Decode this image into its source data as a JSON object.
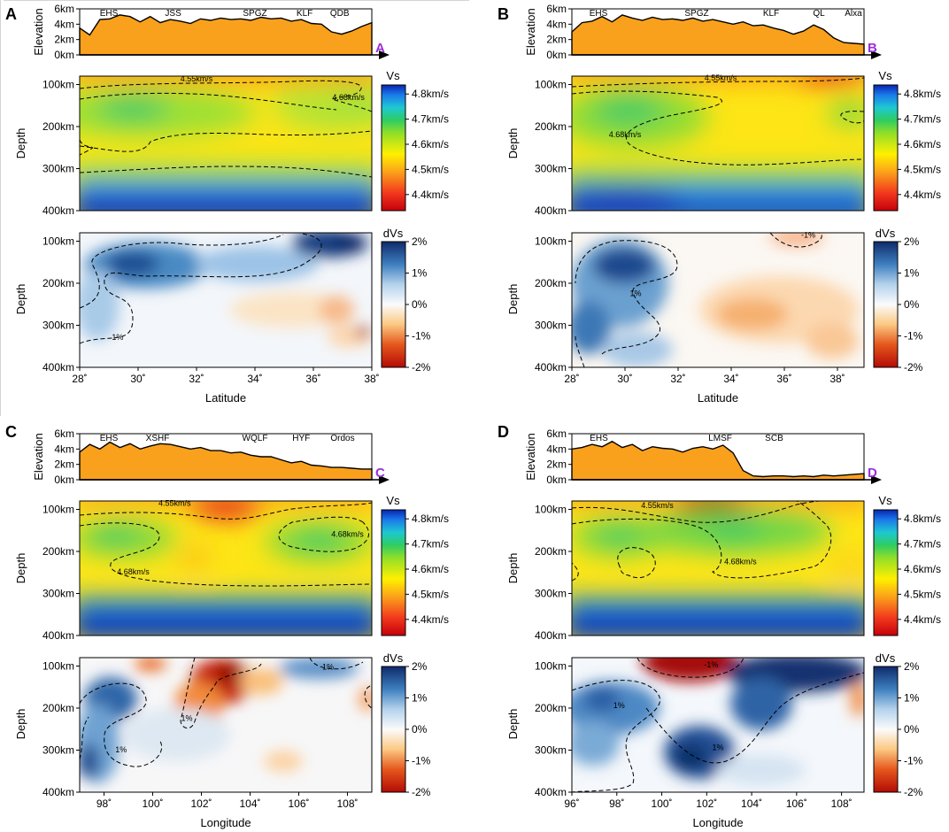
{
  "chart_data": [
    {
      "panel": "A",
      "type": "heatmap",
      "end_label": "A",
      "x_axis_label": "Latitude",
      "x_ticks": [
        "28˚",
        "30˚",
        "32˚",
        "34˚",
        "36˚",
        "38˚"
      ],
      "x_tick_values": [
        28,
        30,
        32,
        34,
        36,
        38
      ],
      "xlim": [
        28,
        38
      ],
      "elevation": {
        "ylabel": "Elevation",
        "yticks": [
          "6km",
          "4km",
          "2km",
          "0km"
        ],
        "ylim_km": [
          0,
          6
        ],
        "profile_km": [
          3.5,
          2.6,
          4.6,
          4.7,
          5.2,
          5.0,
          4.3,
          5.0,
          4.2,
          4.6,
          4.4,
          4.1,
          4.7,
          4.5,
          4.8,
          4.6,
          4.7,
          4.5,
          4.9,
          4.7,
          4.8,
          4.4,
          4.6,
          4.1,
          4.0,
          3.0,
          2.7,
          3.1,
          3.7,
          4.2
        ],
        "features": [
          {
            "name": "EHS",
            "x": 29.0
          },
          {
            "name": "JSS",
            "x": 31.2
          },
          {
            "name": "SPGZ",
            "x": 34.0
          },
          {
            "name": "KLF",
            "x": 35.7
          },
          {
            "name": "QDB",
            "x": 36.9
          }
        ]
      },
      "vs": {
        "ylabel": "Depth",
        "yticks": [
          "100km",
          "200km",
          "300km",
          "400km"
        ],
        "ylim_km": [
          80,
          400
        ],
        "colorbar_title": "Vs",
        "colorbar_ticks": [
          "4.8km/s",
          "4.7km/s",
          "4.6km/s",
          "4.5km/s",
          "4.4km/s"
        ],
        "contour_labels": [
          {
            "text": "4.55km/s",
            "x": 32.0,
            "y": 93
          },
          {
            "text": "4.68km/s",
            "x": 37.2,
            "y": 137
          }
        ]
      },
      "dvs": {
        "ylabel": "Depth",
        "yticks": [
          "100km",
          "200km",
          "300km",
          "400km"
        ],
        "colorbar_title": "dVs",
        "colorbar_ticks": [
          "2%",
          "1%",
          "0%",
          "-1%",
          "-2%"
        ],
        "contour_labels": [
          {
            "text": "1%",
            "x": 29.3,
            "y": 335
          }
        ]
      }
    },
    {
      "panel": "B",
      "type": "heatmap",
      "end_label": "B",
      "x_axis_label": "Latitude",
      "x_ticks": [
        "28˚",
        "30˚",
        "32˚",
        "34˚",
        "36˚",
        "38˚"
      ],
      "x_tick_values": [
        28,
        30,
        32,
        34,
        36,
        38
      ],
      "xlim": [
        28,
        39
      ],
      "elevation": {
        "ylabel": "Elevation",
        "yticks": [
          "6km",
          "4km",
          "2km",
          "0km"
        ],
        "ylim_km": [
          0,
          6
        ],
        "profile_km": [
          3.0,
          4.2,
          4.4,
          5.0,
          4.3,
          5.2,
          4.8,
          4.5,
          4.9,
          4.6,
          4.7,
          4.5,
          4.8,
          4.4,
          4.6,
          4.3,
          4.0,
          4.3,
          3.8,
          3.9,
          3.5,
          3.2,
          2.7,
          3.1,
          3.9,
          3.3,
          2.2,
          1.6,
          1.5,
          1.4
        ],
        "features": [
          {
            "name": "EHS",
            "x": 29.0
          },
          {
            "name": "SPGZ",
            "x": 32.7
          },
          {
            "name": "KLF",
            "x": 35.5
          },
          {
            "name": "QL",
            "x": 37.3
          },
          {
            "name": "Alxa",
            "x": 38.6
          }
        ]
      },
      "vs": {
        "ylabel": "Depth",
        "yticks": [
          "100km",
          "200km",
          "300km",
          "400km"
        ],
        "ylim_km": [
          80,
          400
        ],
        "colorbar_title": "Vs",
        "colorbar_ticks": [
          "4.8km/s",
          "4.7km/s",
          "4.6km/s",
          "4.5km/s",
          "4.4km/s"
        ],
        "contour_labels": [
          {
            "text": "4.55km/s",
            "x": 33.6,
            "y": 91
          },
          {
            "text": "4.68km/s",
            "x": 30.0,
            "y": 225
          }
        ]
      },
      "dvs": {
        "ylabel": "Depth",
        "yticks": [
          "100km",
          "200km",
          "300km",
          "400km"
        ],
        "colorbar_title": "dVs",
        "colorbar_ticks": [
          "2%",
          "1%",
          "0%",
          "-1%",
          "-2%"
        ],
        "contour_labels": [
          {
            "text": "-1%",
            "x": 36.9,
            "y": 92
          },
          {
            "text": "1%",
            "x": 30.4,
            "y": 230
          }
        ]
      }
    },
    {
      "panel": "C",
      "type": "heatmap",
      "end_label": "C",
      "x_axis_label": "Longitude",
      "x_ticks": [
        "98˚",
        "100˚",
        "102˚",
        "104˚",
        "106˚",
        "108˚"
      ],
      "x_tick_values": [
        98,
        100,
        102,
        104,
        106,
        108
      ],
      "xlim": [
        97,
        109
      ],
      "elevation": {
        "ylabel": "Elevation",
        "yticks": [
          "6km",
          "4km",
          "2km",
          "0km"
        ],
        "ylim_km": [
          0,
          6
        ],
        "profile_km": [
          3.6,
          4.6,
          4.0,
          4.9,
          4.2,
          4.7,
          4.0,
          4.4,
          4.7,
          4.6,
          4.3,
          4.0,
          4.2,
          3.8,
          3.8,
          3.5,
          3.6,
          3.2,
          3.0,
          3.0,
          2.6,
          2.2,
          2.4,
          1.9,
          1.8,
          1.6,
          1.6,
          1.5,
          1.4,
          1.4
        ],
        "features": [
          {
            "name": "EHS",
            "x": 98.2
          },
          {
            "name": "XSHF",
            "x": 100.2
          },
          {
            "name": "WQLF",
            "x": 104.2
          },
          {
            "name": "HYF",
            "x": 106.1
          },
          {
            "name": "Ordos",
            "x": 107.8
          }
        ]
      },
      "vs": {
        "ylabel": "Depth",
        "yticks": [
          "100km",
          "200km",
          "300km",
          "400km"
        ],
        "ylim_km": [
          80,
          400
        ],
        "colorbar_title": "Vs",
        "colorbar_ticks": [
          "4.8km/s",
          "4.7km/s",
          "4.6km/s",
          "4.5km/s",
          "4.4km/s"
        ],
        "contour_labels": [
          {
            "text": "4.55km/s",
            "x": 100.9,
            "y": 92
          },
          {
            "text": "4.68km/s",
            "x": 99.2,
            "y": 255
          },
          {
            "text": "4.68km/s",
            "x": 108.0,
            "y": 165
          }
        ]
      },
      "dvs": {
        "ylabel": "Depth",
        "yticks": [
          "100km",
          "200km",
          "300km",
          "400km"
        ],
        "colorbar_title": "dVs",
        "colorbar_ticks": [
          "2%",
          "1%",
          "0%",
          "-1%",
          "-2%"
        ],
        "contour_labels": [
          {
            "text": "1%",
            "x": 107.2,
            "y": 108
          },
          {
            "text": "1%",
            "x": 101.4,
            "y": 230
          },
          {
            "text": "1%",
            "x": 98.7,
            "y": 305
          }
        ]
      }
    },
    {
      "panel": "D",
      "type": "heatmap",
      "end_label": "D",
      "x_axis_label": "Longitude",
      "x_ticks": [
        "96˚",
        "98˚",
        "100˚",
        "102˚",
        "104˚",
        "106˚",
        "108˚"
      ],
      "x_tick_values": [
        96,
        98,
        100,
        102,
        104,
        106,
        108
      ],
      "xlim": [
        96,
        109
      ],
      "elevation": {
        "ylabel": "Elevation",
        "yticks": [
          "6km",
          "4km",
          "2km",
          "0km"
        ],
        "ylim_km": [
          0,
          6
        ],
        "profile_km": [
          4.0,
          4.2,
          4.6,
          4.3,
          5.0,
          4.2,
          4.6,
          3.8,
          4.3,
          4.1,
          4.0,
          3.6,
          4.1,
          4.3,
          4.0,
          4.5,
          3.5,
          1.2,
          0.5,
          0.4,
          0.5,
          0.5,
          0.4,
          0.5,
          0.4,
          0.6,
          0.5,
          0.6,
          0.7,
          0.8
        ],
        "features": [
          {
            "name": "EHS",
            "x": 97.2
          },
          {
            "name": "LMSF",
            "x": 102.6
          },
          {
            "name": "SCB",
            "x": 105.0
          }
        ]
      },
      "vs": {
        "ylabel": "Depth",
        "yticks": [
          "100km",
          "200km",
          "300km",
          "400km"
        ],
        "ylim_km": [
          80,
          400
        ],
        "colorbar_title": "Vs",
        "colorbar_ticks": [
          "4.8km/s",
          "4.7km/s",
          "4.6km/s",
          "4.5km/s",
          "4.4km/s"
        ],
        "contour_labels": [
          {
            "text": "4.55km/s",
            "x": 99.8,
            "y": 97
          },
          {
            "text": "4.68km/s",
            "x": 103.5,
            "y": 230
          }
        ]
      },
      "dvs": {
        "ylabel": "Depth",
        "yticks": [
          "100km",
          "200km",
          "300km",
          "400km"
        ],
        "colorbar_title": "dVs",
        "colorbar_ticks": [
          "2%",
          "1%",
          "0%",
          "-1%",
          "-2%"
        ],
        "contour_labels": [
          {
            "text": "-1%",
            "x": 102.2,
            "y": 103
          },
          {
            "text": "1%",
            "x": 98.1,
            "y": 200
          },
          {
            "text": "1%",
            "x": 102.5,
            "y": 300
          }
        ]
      }
    }
  ]
}
